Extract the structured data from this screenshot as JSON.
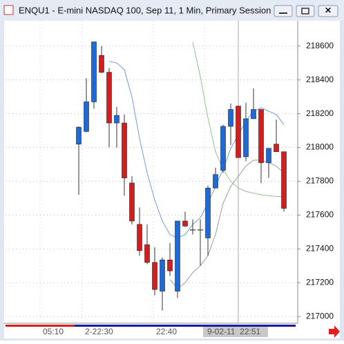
{
  "chart_data": {
    "type": "candlestick",
    "title": "ENQU1 - E-mini NASDAQ 100, Sep 11, 1 Min, Primary Session",
    "open": [
      218020,
      218095,
      218270,
      218545,
      218445,
      218145,
      218145,
      217790,
      217545,
      217425,
      217320,
      217150,
      217335,
      217150,
      217565,
      217515,
      217515,
      217465,
      217760,
      217865,
      218125,
      218245,
      217945,
      218170,
      218225,
      217910,
      218020,
      217975
    ],
    "high": [
      218125,
      218410,
      218625,
      218600,
      218470,
      218240,
      218195,
      217830,
      217645,
      217545,
      217410,
      217350,
      217435,
      217565,
      217620,
      217575,
      217575,
      217775,
      217880,
      218135,
      218260,
      218245,
      218265,
      218350,
      218225,
      217995,
      218165,
      217975
    ],
    "low": [
      217720,
      218090,
      218230,
      218440,
      218000,
      218000,
      217715,
      217545,
      217360,
      217310,
      217125,
      217035,
      217240,
      217110,
      217530,
      217485,
      217300,
      217360,
      217760,
      217850,
      218015,
      217940,
      217920,
      218170,
      217790,
      217820,
      217975,
      217620
    ],
    "close": [
      218120,
      218270,
      218625,
      218445,
      218145,
      218190,
      217820,
      217565,
      217390,
      217320,
      217160,
      217335,
      217270,
      217565,
      217535,
      217515,
      217515,
      217760,
      217840,
      218125,
      218225,
      217940,
      218170,
      218225,
      217910,
      217995,
      217975,
      217640
    ],
    "up_color": "#1e6ad8",
    "down_color": "#d21e1e",
    "flat_color": "#ffffff",
    "lines": [
      {
        "color": "#6f9be0",
        "values": [
          null,
          null,
          null,
          null,
          218510,
          218500,
          218460,
          218300,
          218055,
          217850,
          217690,
          217565,
          217485,
          217465,
          217485,
          217545,
          217585,
          217670,
          217770,
          217870,
          217995,
          218075,
          218155,
          218215,
          218235,
          218215,
          218195,
          218135
        ]
      },
      {
        "color": "#9a9a9a",
        "values": [
          null,
          null,
          null,
          null,
          null,
          null,
          null,
          null,
          null,
          null,
          null,
          null,
          217220,
          217165,
          217200,
          217260,
          217300,
          217360,
          217485,
          217670,
          217770,
          217830,
          217890,
          217925,
          217925,
          217910,
          217890,
          217850
        ]
      },
      {
        "color": "#8fc08f",
        "values": [
          null,
          null,
          null,
          null,
          null,
          null,
          null,
          null,
          null,
          null,
          null,
          null,
          null,
          null,
          null,
          218625,
          218420,
          218175,
          217975,
          217870,
          217800,
          217760,
          217740,
          217730,
          217720,
          217715,
          217710,
          217710
        ]
      }
    ],
    "ylim": [
      216960,
      218750
    ],
    "yticks": [
      217000,
      217200,
      217400,
      217600,
      217800,
      218000,
      218200,
      218400,
      218600
    ],
    "grid": true,
    "time_labels": [
      "05:10",
      "2-22:30",
      "22:40",
      "9-02-11  22:51"
    ]
  }
}
